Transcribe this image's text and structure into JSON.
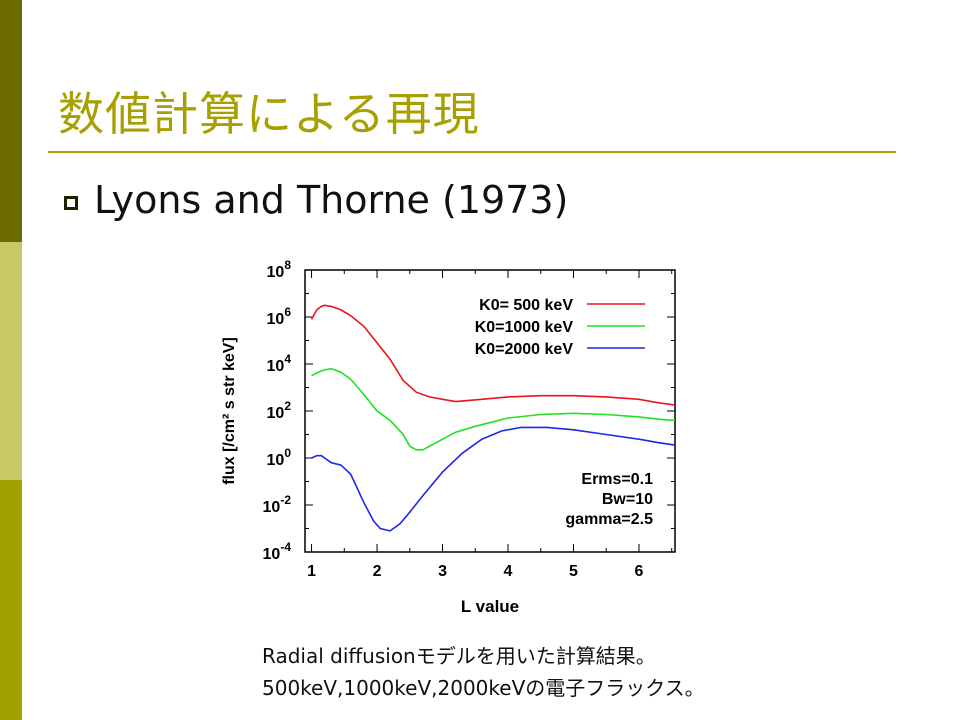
{
  "slide": {
    "title": "数値計算による再現",
    "subtitle": "Lyons and Thorne (1973)",
    "caption_line1": "Radial diffusionモデルを用いた計算結果。",
    "caption_line2": "500keV,1000keV,2000keVの電子フラックス。"
  },
  "chart_data": {
    "type": "line",
    "xlabel": "L value",
    "ylabel": "flux [/cm² s str keV]",
    "xlim": [
      0.9,
      6.55
    ],
    "ylim": [
      -4,
      8
    ],
    "yscale": "log10",
    "xticks": [
      1,
      2,
      3,
      4,
      5,
      6
    ],
    "yticks": [
      -4,
      -2,
      0,
      2,
      4,
      6,
      8
    ],
    "legend_position": "top-right",
    "annotations": [
      "Erms=0.1",
      "Bw=10",
      "gamma=2.5"
    ],
    "series": [
      {
        "name": "K0= 500 keV",
        "color": "#e8141e",
        "x": [
          1.0,
          1.08,
          1.15,
          1.2,
          1.3,
          1.45,
          1.6,
          1.8,
          2.0,
          2.2,
          2.4,
          2.6,
          2.8,
          3.0,
          3.2,
          3.6,
          4.0,
          4.5,
          5.0,
          5.5,
          6.0,
          6.3,
          6.55
        ],
        "log_y": [
          5.9,
          6.3,
          6.45,
          6.5,
          6.45,
          6.3,
          6.05,
          5.6,
          4.9,
          4.2,
          3.3,
          2.8,
          2.6,
          2.5,
          2.4,
          2.5,
          2.6,
          2.65,
          2.65,
          2.6,
          2.5,
          2.35,
          2.25
        ]
      },
      {
        "name": "K0=1000 keV",
        "color": "#22e022",
        "x": [
          1.0,
          1.1,
          1.2,
          1.3,
          1.45,
          1.6,
          1.8,
          2.0,
          2.2,
          2.4,
          2.5,
          2.6,
          2.7,
          2.8,
          3.0,
          3.2,
          3.5,
          4.0,
          4.5,
          5.0,
          5.5,
          6.0,
          6.3,
          6.55
        ],
        "log_y": [
          3.5,
          3.65,
          3.75,
          3.8,
          3.65,
          3.35,
          2.7,
          2.0,
          1.6,
          1.0,
          0.5,
          0.35,
          0.35,
          0.5,
          0.8,
          1.1,
          1.35,
          1.7,
          1.85,
          1.9,
          1.85,
          1.75,
          1.65,
          1.6
        ]
      },
      {
        "name": "K0=2000 keV",
        "color": "#1e28e6",
        "x": [
          1.0,
          1.08,
          1.15,
          1.2,
          1.3,
          1.45,
          1.6,
          1.8,
          1.95,
          2.05,
          2.2,
          2.35,
          2.5,
          2.7,
          3.0,
          3.3,
          3.6,
          3.9,
          4.2,
          4.6,
          5.0,
          5.5,
          6.0,
          6.3,
          6.55
        ],
        "log_y": [
          0.0,
          0.1,
          0.1,
          0.0,
          -0.2,
          -0.3,
          -0.7,
          -1.9,
          -2.7,
          -3.0,
          -3.1,
          -2.8,
          -2.3,
          -1.6,
          -0.6,
          0.2,
          0.8,
          1.15,
          1.3,
          1.3,
          1.2,
          1.0,
          0.8,
          0.65,
          0.55
        ]
      }
    ]
  }
}
